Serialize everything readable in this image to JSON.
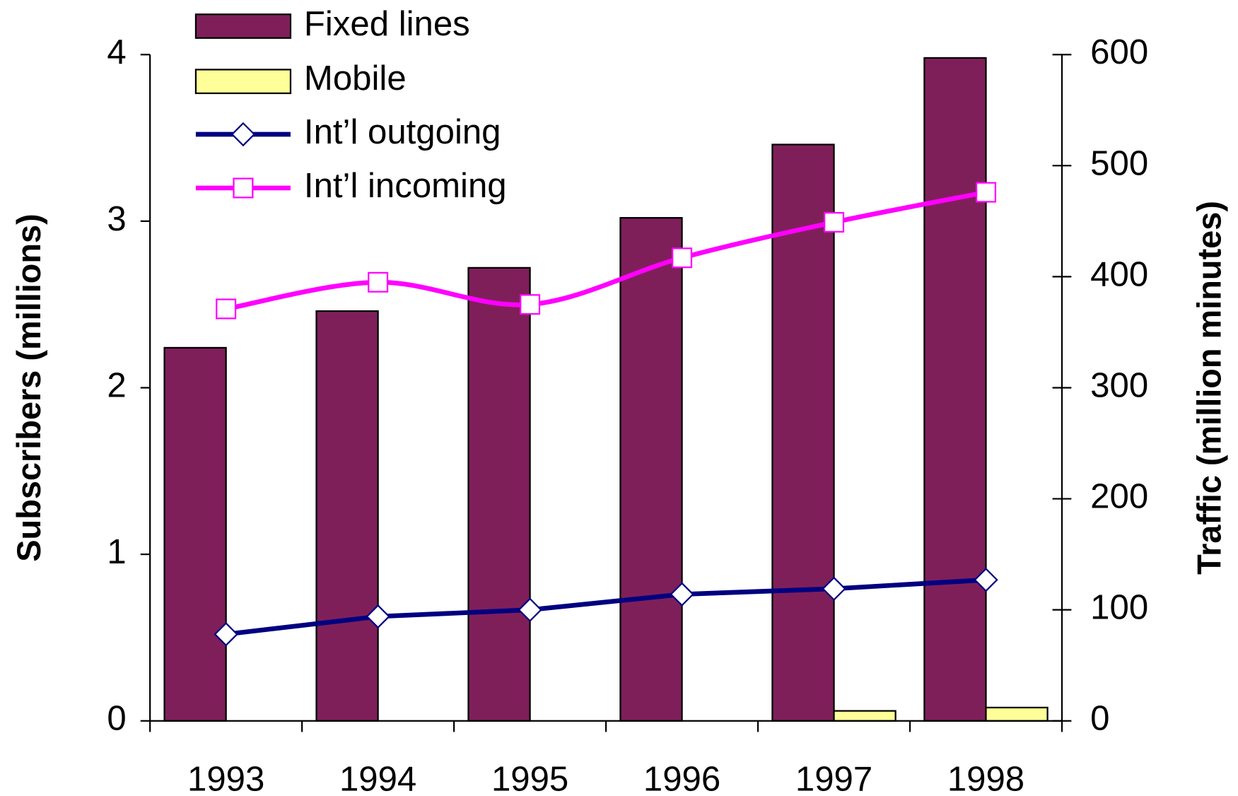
{
  "chart_data": {
    "type": "bar",
    "categories": [
      "1993",
      "1994",
      "1995",
      "1996",
      "1997",
      "1998"
    ],
    "y_label": "Subscribers (millions)",
    "y2_label": "Traffic (million minutes)",
    "ylim": [
      0,
      4
    ],
    "yticks": [
      0,
      1,
      2,
      3,
      4
    ],
    "y2lim": [
      0,
      600
    ],
    "y2ticks": [
      0,
      100,
      200,
      300,
      400,
      500,
      600
    ],
    "series": [
      {
        "name": "Fixed lines",
        "type": "bar",
        "color": "#7f1f5a",
        "values": [
          2.24,
          2.46,
          2.72,
          3.02,
          3.46,
          3.98
        ]
      },
      {
        "name": "Mobile",
        "type": "bar",
        "color": "#ffff99",
        "values": [
          0,
          0,
          0,
          0,
          0.06,
          0.08
        ]
      },
      {
        "name": "Int’l outgoing",
        "type": "line",
        "axis": "y2",
        "color": "#000080",
        "values": [
          78,
          94,
          100,
          114,
          119,
          127
        ]
      },
      {
        "name": "Int’l incoming",
        "type": "line",
        "axis": "y2",
        "color": "#ff00ff",
        "values": [
          371,
          395,
          375,
          417,
          449,
          476
        ]
      }
    ]
  }
}
